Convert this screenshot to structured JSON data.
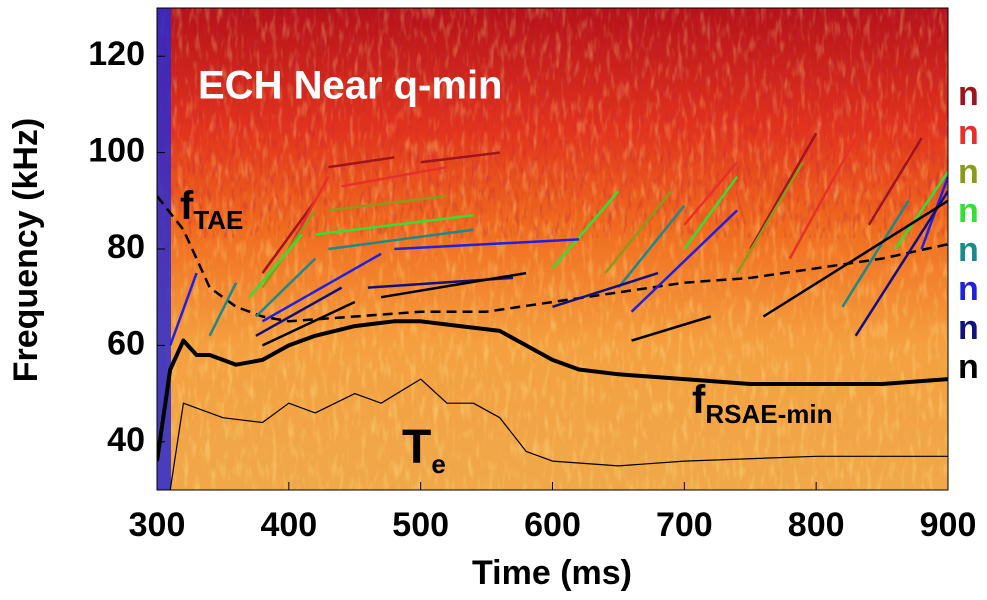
{
  "chart_data": {
    "type": "line",
    "xlabel": "Time (ms)",
    "ylabel": "Frequency (kHz)",
    "xlim": [
      300,
      900
    ],
    "xticks": [
      300,
      400,
      500,
      600,
      700,
      800,
      900
    ],
    "ylim": [
      30,
      130
    ],
    "yticks": [
      40,
      60,
      80,
      100,
      120
    ],
    "grid": false,
    "annotations": [
      {
        "text": "ECH Near q-min"
      },
      {
        "text": "f",
        "sub": "TAE"
      },
      {
        "text": "f",
        "sub": "RSAE-min"
      },
      {
        "text": "T",
        "sub": "e"
      }
    ],
    "legend_position": "right",
    "series": [
      {
        "name": "n",
        "color": "#a0141e",
        "x": [
          380,
          420,
          null,
          430,
          480,
          null,
          500,
          560,
          null,
          750,
          800,
          null,
          840,
          880
        ],
        "values": [
          75,
          90,
          null,
          97,
          99,
          null,
          98,
          100,
          null,
          80,
          104,
          null,
          85,
          103
        ]
      },
      {
        "name": "n",
        "color": "#e8302a",
        "x": [
          400,
          430,
          null,
          440,
          520,
          null,
          700,
          740,
          null,
          780,
          830
        ],
        "values": [
          80,
          95,
          null,
          93,
          97,
          null,
          85,
          98,
          null,
          78,
          103
        ]
      },
      {
        "name": "n",
        "color": "#8a9a1a",
        "x": [
          380,
          420,
          null,
          430,
          520,
          null,
          640,
          690,
          null,
          740,
          790
        ],
        "values": [
          72,
          88,
          null,
          88,
          91,
          null,
          75,
          92,
          null,
          75,
          98
        ]
      },
      {
        "name": "n",
        "color": "#33e033",
        "x": [
          370,
          410,
          null,
          420,
          540,
          null,
          600,
          650,
          null,
          700,
          740,
          null,
          860,
          900
        ],
        "values": [
          70,
          83,
          null,
          83,
          87,
          null,
          76,
          92,
          null,
          80,
          95,
          null,
          80,
          96
        ]
      },
      {
        "name": "n",
        "color": "#1a8a8a",
        "x": [
          340,
          360,
          null,
          375,
          420,
          null,
          430,
          540,
          null,
          650,
          700,
          null,
          820,
          870
        ],
        "values": [
          62,
          73,
          null,
          66,
          78,
          null,
          80,
          84,
          null,
          72,
          89,
          null,
          68,
          90
        ]
      },
      {
        "name": "n",
        "color": "#2020e0",
        "x": [
          310,
          330,
          null,
          380,
          470,
          null,
          480,
          620,
          null,
          660,
          740,
          null,
          880,
          900
        ],
        "values": [
          60,
          75,
          null,
          65,
          79,
          null,
          80,
          82,
          null,
          67,
          88,
          null,
          80,
          95
        ]
      },
      {
        "name": "n",
        "color": "#101080",
        "x": [
          375,
          440,
          null,
          460,
          570,
          null,
          600,
          680,
          null,
          830,
          900
        ],
        "values": [
          62,
          72,
          null,
          72,
          74,
          null,
          68,
          75,
          null,
          62,
          92
        ]
      },
      {
        "name": "n",
        "color": "#000000",
        "x": [
          380,
          450,
          null,
          470,
          580,
          null,
          660,
          720,
          null,
          760,
          900
        ],
        "values": [
          60,
          69,
          null,
          70,
          75,
          null,
          61,
          66,
          null,
          66,
          90
        ]
      }
    ],
    "curves": [
      {
        "color": "#000000",
        "dashed": true,
        "width": 2.5,
        "x": [
          300,
          320,
          340,
          360,
          380,
          400,
          450,
          500,
          550,
          600,
          650,
          700,
          750,
          800,
          850,
          900
        ],
        "values": [
          91,
          84,
          72,
          68,
          66,
          65,
          66,
          67,
          67,
          69,
          71,
          73,
          74,
          76,
          78,
          81
        ]
      },
      {
        "color": "#000000",
        "dashed": false,
        "width": 4,
        "x": [
          300,
          310,
          320,
          330,
          340,
          360,
          380,
          400,
          420,
          450,
          480,
          500,
          530,
          560,
          580,
          600,
          620,
          650,
          700,
          750,
          800,
          850,
          900
        ],
        "values": [
          36,
          55,
          61,
          58,
          58,
          56,
          57,
          60,
          62,
          64,
          65,
          65,
          64,
          63,
          60,
          57,
          55,
          54,
          53,
          52,
          52,
          52,
          53
        ]
      },
      {
        "color": "#000000",
        "dashed": false,
        "width": 1.2,
        "x": [
          310,
          320,
          350,
          380,
          400,
          420,
          450,
          470,
          500,
          520,
          540,
          560,
          580,
          600,
          650,
          700,
          800,
          900
        ],
        "values": [
          30,
          48,
          45,
          44,
          48,
          46,
          50,
          48,
          53,
          48,
          48,
          45,
          38,
          36,
          35,
          36,
          37,
          37
        ]
      }
    ]
  }
}
